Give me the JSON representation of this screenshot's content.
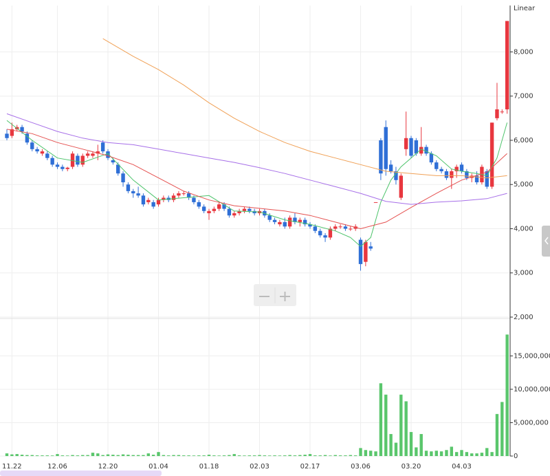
{
  "chart_data": [
    {
      "type": "candlestick",
      "scale_label": "Linear",
      "up_color": "#e8373f",
      "down_color": "#2f6fd6",
      "grid": true,
      "ylim": [
        2000,
        9050
      ],
      "yticks": [
        {
          "value": 2000,
          "label": "2,000"
        },
        {
          "value": 3000,
          "label": "3,000"
        },
        {
          "value": 4000,
          "label": "4,000"
        },
        {
          "value": 5000,
          "label": "5,000"
        },
        {
          "value": 6000,
          "label": "6,000"
        },
        {
          "value": 7000,
          "label": "7,000"
        },
        {
          "value": 8000,
          "label": "8,000"
        }
      ],
      "open": [
        6150,
        6100,
        6250,
        6300,
        6150,
        5950,
        5800,
        5700,
        5700,
        5600,
        5450,
        5400,
        5350,
        5400,
        5650,
        5450,
        5650,
        5650,
        5700,
        5950,
        5750,
        5550,
        5450,
        5250,
        5000,
        4850,
        4800,
        4750,
        4600,
        4600,
        4550,
        4650,
        4700,
        4650,
        4750,
        4800,
        4800,
        4700,
        4600,
        4500,
        4350,
        4400,
        4450,
        4550,
        4450,
        4300,
        4350,
        4400,
        4450,
        4400,
        4350,
        4400,
        4300,
        4200,
        4100,
        4150,
        4050,
        4250,
        4150,
        4200,
        4100,
        4050,
        3950,
        3850,
        3800,
        4000,
        4050,
        4050,
        4000,
        4000,
        3750,
        3250,
        3600,
        4600,
        6000,
        6300,
        5450,
        5300,
        4700,
        5800,
        6050,
        6000,
        5700,
        5850,
        5700,
        5500,
        5350,
        5300,
        5150,
        5300,
        5450,
        5300,
        5150,
        5200,
        5050,
        5300,
        4950,
        6500,
        6650,
        6700
      ],
      "high": [
        6250,
        6400,
        6350,
        6350,
        6200,
        6000,
        5850,
        5800,
        5750,
        5650,
        5500,
        5450,
        5400,
        5750,
        5700,
        5700,
        5750,
        5750,
        5900,
        6000,
        5800,
        5600,
        5500,
        5300,
        5050,
        4900,
        4950,
        4800,
        4700,
        4650,
        4700,
        4750,
        4750,
        4800,
        4850,
        4850,
        4850,
        4750,
        4650,
        4550,
        4450,
        4500,
        4600,
        4600,
        4500,
        4400,
        4450,
        4500,
        4500,
        4450,
        4450,
        4450,
        4350,
        4250,
        4200,
        4250,
        4300,
        4350,
        4250,
        4250,
        4150,
        4100,
        4000,
        3900,
        4050,
        4100,
        4100,
        4100,
        4050,
        4100,
        3800,
        3750,
        3700,
        4600,
        6050,
        6450,
        5550,
        5400,
        5250,
        6650,
        6100,
        6050,
        6300,
        5900,
        5750,
        5550,
        5400,
        5350,
        5350,
        5450,
        5500,
        5350,
        5250,
        5300,
        5450,
        5350,
        6400,
        7300,
        6700,
        8700
      ],
      "low": [
        6000,
        6050,
        6200,
        6150,
        5900,
        5750,
        5700,
        5650,
        5550,
        5400,
        5350,
        5300,
        5300,
        5350,
        5400,
        5400,
        5600,
        5600,
        5550,
        5700,
        5550,
        5450,
        5200,
        4950,
        4800,
        4700,
        4700,
        4500,
        4550,
        4450,
        4500,
        4600,
        4600,
        4600,
        4700,
        4750,
        4650,
        4550,
        4450,
        4350,
        4200,
        4350,
        4400,
        4400,
        4250,
        4250,
        4300,
        4350,
        4350,
        4300,
        4300,
        4250,
        4150,
        4100,
        4050,
        4000,
        4000,
        4100,
        4050,
        4050,
        4000,
        3900,
        3800,
        3700,
        3750,
        3950,
        4000,
        3950,
        3950,
        3950,
        3050,
        3150,
        3500,
        4600,
        5100,
        5200,
        5250,
        5000,
        4650,
        5650,
        5600,
        5650,
        5650,
        5650,
        5450,
        5300,
        5250,
        5100,
        4900,
        5150,
        5250,
        5100,
        5050,
        5000,
        5000,
        4900,
        4900,
        6450,
        6600,
        6600
      ],
      "close": [
        6050,
        6250,
        6300,
        6200,
        5950,
        5800,
        5750,
        5750,
        5600,
        5450,
        5400,
        5350,
        5380,
        5700,
        5450,
        5650,
        5700,
        5700,
        5750,
        5750,
        5600,
        5500,
        5250,
        5050,
        4850,
        4800,
        4750,
        4550,
        4650,
        4500,
        4650,
        4700,
        4650,
        4750,
        4800,
        4800,
        4700,
        4600,
        4500,
        4400,
        4400,
        4450,
        4550,
        4450,
        4300,
        4350,
        4400,
        4450,
        4400,
        4350,
        4400,
        4300,
        4200,
        4150,
        4150,
        4050,
        4250,
        4150,
        4200,
        4100,
        4050,
        3950,
        3850,
        3800,
        4000,
        4050,
        4050,
        4000,
        4000,
        4050,
        3200,
        3700,
        3550,
        4600,
        5250,
        5350,
        5300,
        5100,
        5200,
        6050,
        5650,
        5700,
        5850,
        5700,
        5500,
        5350,
        5300,
        5150,
        5300,
        5400,
        5300,
        5150,
        5200,
        5050,
        5400,
        4950,
        6400,
        6700,
        6650,
        8700
      ],
      "series": [
        {
          "color": "#4cc36a",
          "x": [
            0,
            5,
            10,
            15,
            20,
            25,
            30,
            35,
            40,
            45,
            50,
            55,
            60,
            65,
            68,
            70,
            72,
            74,
            76,
            78,
            80,
            82,
            85,
            88,
            90,
            93,
            95,
            97,
            99
          ],
          "values": [
            6450,
            6000,
            5600,
            5500,
            5700,
            5100,
            4650,
            4700,
            4750,
            4400,
            4380,
            4200,
            4100,
            3950,
            3800,
            3600,
            3800,
            4600,
            5100,
            5400,
            5600,
            5800,
            5650,
            5350,
            5300,
            5250,
            5200,
            5600,
            6400
          ]
        },
        {
          "color": "#e5504f",
          "x": [
            0,
            5,
            10,
            15,
            20,
            25,
            30,
            35,
            40,
            45,
            50,
            55,
            60,
            65,
            70,
            75,
            80,
            85,
            90,
            95,
            99
          ],
          "values": [
            6250,
            6150,
            5950,
            5800,
            5650,
            5450,
            5150,
            4850,
            4650,
            4520,
            4460,
            4400,
            4300,
            4150,
            4000,
            4150,
            4480,
            4800,
            5100,
            5280,
            5700
          ]
        },
        {
          "color": "#a66ee8",
          "x": [
            0,
            5,
            10,
            15,
            20,
            25,
            30,
            35,
            40,
            45,
            50,
            55,
            60,
            65,
            70,
            75,
            80,
            85,
            90,
            95,
            99
          ],
          "values": [
            6600,
            6400,
            6200,
            6050,
            5950,
            5900,
            5800,
            5700,
            5600,
            5500,
            5380,
            5250,
            5100,
            4950,
            4800,
            4620,
            4550,
            4600,
            4630,
            4680,
            4800
          ]
        },
        {
          "color": "#f0a055",
          "x": [
            19,
            25,
            30,
            35,
            40,
            45,
            50,
            55,
            60,
            65,
            70,
            75,
            80,
            85,
            90,
            95,
            99
          ],
          "values": [
            8300,
            7900,
            7600,
            7250,
            6850,
            6500,
            6200,
            5950,
            5750,
            5600,
            5450,
            5300,
            5250,
            5200,
            5200,
            5150,
            5200
          ]
        }
      ]
    },
    {
      "type": "bar",
      "color": "#5ac66c",
      "grid": true,
      "ylim": [
        0,
        20400000
      ],
      "yticks": [
        0,
        {
          "value": 5000000,
          "label": "5,000,000"
        },
        {
          "value": 10000000,
          "label": "10,000,000"
        },
        {
          "value": 15000000,
          "label": "15,000,000"
        }
      ],
      "categories": [
        null,
        "11.22",
        null,
        null,
        null,
        null,
        null,
        null,
        null,
        null,
        "12.06",
        null,
        null,
        null,
        null,
        null,
        null,
        null,
        null,
        null,
        "12.20",
        null,
        null,
        null,
        null,
        null,
        null,
        null,
        null,
        null,
        "01.04",
        null,
        null,
        null,
        null,
        null,
        null,
        null,
        null,
        null,
        "01.18",
        null,
        null,
        null,
        null,
        null,
        null,
        null,
        null,
        null,
        "02.03",
        null,
        null,
        null,
        null,
        null,
        null,
        null,
        null,
        null,
        "02.17",
        null,
        null,
        null,
        null,
        null,
        null,
        null,
        null,
        null,
        "03.06",
        null,
        null,
        null,
        null,
        null,
        null,
        null,
        null,
        null,
        "03.20",
        null,
        null,
        null,
        null,
        null,
        null,
        null,
        null,
        null,
        "04.03",
        null,
        null,
        null,
        null,
        null,
        null,
        null,
        null,
        null
      ],
      "values": [
        400000,
        250000,
        300000,
        200000,
        150000,
        150000,
        100000,
        100000,
        100000,
        80000,
        300000,
        100000,
        80000,
        150000,
        100000,
        150000,
        150000,
        500000,
        400000,
        150000,
        250000,
        200000,
        150000,
        250000,
        200000,
        150000,
        150000,
        150000,
        400000,
        200000,
        600000,
        150000,
        100000,
        150000,
        150000,
        100000,
        100000,
        80000,
        100000,
        100000,
        200000,
        100000,
        80000,
        100000,
        150000,
        300000,
        100000,
        80000,
        100000,
        100000,
        150000,
        100000,
        80000,
        100000,
        80000,
        100000,
        150000,
        100000,
        150000,
        200000,
        300000,
        100000,
        100000,
        150000,
        80000,
        150000,
        100000,
        100000,
        150000,
        100000,
        1200000,
        900000,
        800000,
        700000,
        10900000,
        9200000,
        3300000,
        2000000,
        9200000,
        8200000,
        3600000,
        1300000,
        3300000,
        800000,
        700000,
        800000,
        700000,
        900000,
        1400000,
        600000,
        900000,
        600000,
        400000,
        400000,
        500000,
        1200000,
        600000,
        6300000,
        8100000,
        18200000
      ]
    }
  ]
}
